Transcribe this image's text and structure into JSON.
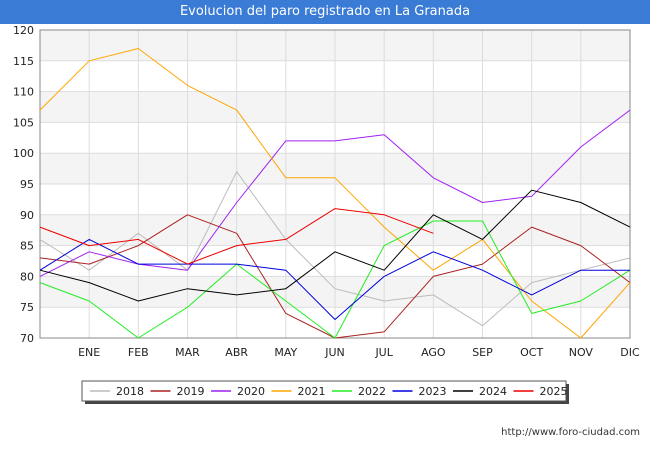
{
  "chart_data": {
    "type": "line",
    "title": "Evolucion del paro registrado en La Granada",
    "xlabel": "",
    "ylabel": "",
    "ylim": [
      70,
      120
    ],
    "yticks": [
      70,
      75,
      80,
      85,
      90,
      95,
      100,
      105,
      110,
      115,
      120
    ],
    "x_tick_labels": [
      "",
      "ENE",
      "FEB",
      "MAR",
      "ABR",
      "MAY",
      "JUN",
      "JUL",
      "AGO",
      "SEP",
      "OCT",
      "NOV",
      "DIC"
    ],
    "grid": true,
    "legend_position": "bottom",
    "series": [
      {
        "name": "2018",
        "color": "#bbbbbb",
        "values": [
          86,
          81,
          87,
          81,
          97,
          86,
          78,
          76,
          77,
          72,
          79,
          81,
          83
        ]
      },
      {
        "name": "2019",
        "color": "#aa2222",
        "values": [
          83,
          82,
          85,
          90,
          87,
          74,
          70,
          71,
          80,
          82,
          88,
          85,
          79
        ]
      },
      {
        "name": "2020",
        "color": "#a020f0",
        "values": [
          80,
          84,
          82,
          81,
          92,
          102,
          102,
          103,
          96,
          92,
          93,
          101,
          107
        ]
      },
      {
        "name": "2021",
        "color": "#ffa500",
        "values": [
          107,
          115,
          117,
          111,
          107,
          96,
          96,
          88,
          81,
          86,
          76,
          70,
          79
        ]
      },
      {
        "name": "2022",
        "color": "#22ee22",
        "values": [
          79,
          76,
          70,
          75,
          82,
          76,
          70,
          85,
          89,
          89,
          74,
          76,
          81
        ]
      },
      {
        "name": "2023",
        "color": "#0000dd",
        "values": [
          81,
          86,
          82,
          82,
          82,
          81,
          73,
          80,
          84,
          81,
          77,
          81,
          81
        ]
      },
      {
        "name": "2024",
        "color": "#000000",
        "values": [
          81,
          79,
          76,
          78,
          77,
          78,
          84,
          81,
          90,
          86,
          94,
          92,
          88
        ]
      },
      {
        "name": "2025",
        "color": "#ee0000",
        "values": [
          88,
          85,
          86,
          82,
          85,
          86,
          91,
          90,
          87
        ]
      }
    ]
  },
  "footer": {
    "credit": "http://www.foro-ciudad.com"
  }
}
